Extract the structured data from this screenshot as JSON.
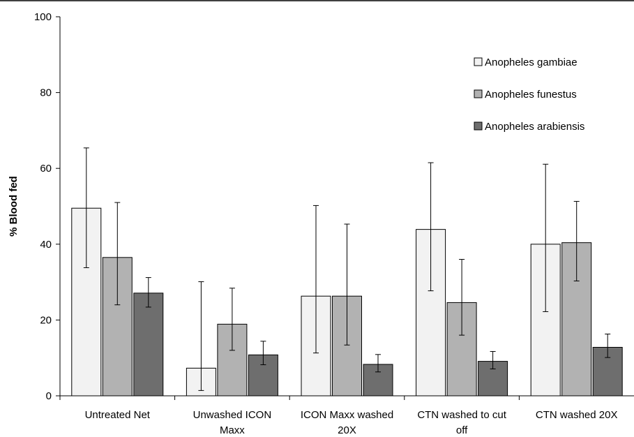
{
  "chart_data": {
    "type": "bar",
    "title": "",
    "xlabel": "",
    "ylabel": "% Blood fed",
    "ylim": [
      0,
      100
    ],
    "yticks": [
      0,
      20,
      40,
      60,
      80,
      100
    ],
    "grid": false,
    "legend_position": "top-right",
    "categories": [
      [
        "Untreated Net"
      ],
      [
        "Unwashed ICON",
        "Maxx"
      ],
      [
        "ICON Maxx washed",
        "20X"
      ],
      [
        "CTN washed to cut",
        "off"
      ],
      [
        "CTN washed 20X"
      ]
    ],
    "series": [
      {
        "name": "Anopheles gambiae",
        "color": "#f2f2f2",
        "values": [
          49.5,
          7.3,
          26.3,
          43.9,
          40.0
        ],
        "err_low": [
          33.8,
          1.4,
          11.3,
          27.7,
          22.2
        ],
        "err_high": [
          65.4,
          30.1,
          50.2,
          61.5,
          61.1
        ]
      },
      {
        "name": "Anopheles funestus",
        "color": "#b2b2b2",
        "values": [
          36.5,
          18.9,
          26.3,
          24.6,
          40.4
        ],
        "err_low": [
          24.0,
          12.0,
          13.4,
          16.0,
          30.3
        ],
        "err_high": [
          51.0,
          28.4,
          45.3,
          36.0,
          51.3
        ]
      },
      {
        "name": "Anopheles arabiensis",
        "color": "#6e6e6e",
        "values": [
          27.1,
          10.8,
          8.3,
          9.1,
          12.8
        ],
        "err_low": [
          23.4,
          8.2,
          6.3,
          7.1,
          10.1
        ],
        "err_high": [
          31.2,
          14.4,
          10.9,
          11.7,
          16.3
        ]
      }
    ]
  }
}
